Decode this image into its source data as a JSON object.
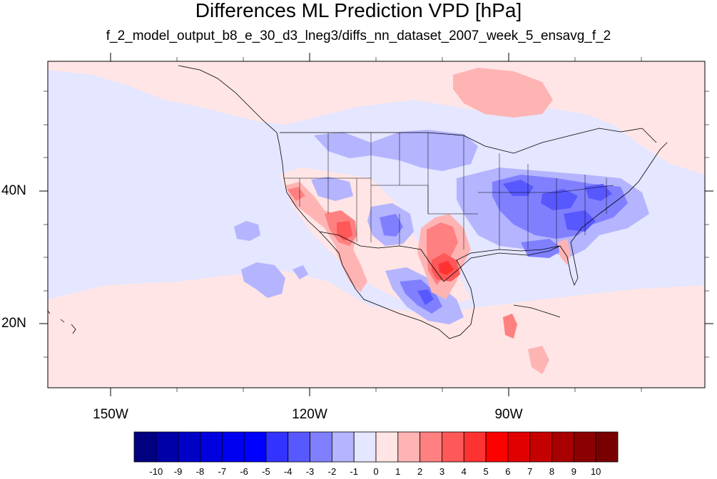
{
  "title": "Differences ML Prediction VPD [hPa]",
  "subtitle": "f_2_model_output_b8_e_30_d3_lneg3/diffs_nn_dataset_2007_week_5_ensavg_f_2",
  "map": {
    "projection": "cylindrical equidistant",
    "lon_range": [
      -160,
      -59
    ],
    "lat_range": [
      11,
      58
    ],
    "lon_ticks": [
      {
        "value": -150,
        "label": "150W"
      },
      {
        "value": -120,
        "label": "120W"
      },
      {
        "value": -90,
        "label": "90W"
      }
    ],
    "lat_ticks": [
      {
        "value": 40,
        "label": "40N"
      },
      {
        "value": 20,
        "label": "20N"
      }
    ],
    "background_color": "#E5E6FF",
    "coastline_color": "#000000",
    "boundaries": "US states"
  },
  "colorbar": {
    "labels": [
      "-10",
      "-9",
      "-8",
      "-7",
      "-6",
      "-5",
      "-4",
      "-3",
      "-2",
      "-1",
      "0",
      "1",
      "2",
      "3",
      "4",
      "5",
      "6",
      "7",
      "8",
      "9",
      "10"
    ],
    "colors": [
      "#000080",
      "#0000A8",
      "#0000C6",
      "#0000DE",
      "#0000F0",
      "#0000FF",
      "#3333FF",
      "#5858FF",
      "#8080FF",
      "#B4B4FF",
      "#E5E6FF",
      "#FFE5E5",
      "#FFB4B4",
      "#FF8080",
      "#FF5858",
      "#FF3232",
      "#FF0000",
      "#E00000",
      "#C40000",
      "#A80000",
      "#8B0000",
      "#780000"
    ]
  },
  "regions": [
    {
      "name": "hudson-bay-positive",
      "color": "#FFB4B4",
      "value": 1.5
    },
    {
      "name": "arizona-positive",
      "color": "#FF5858",
      "value": 3.5
    },
    {
      "name": "california-positive",
      "color": "#FF8080",
      "value": 2.5
    },
    {
      "name": "texas-positive",
      "color": "#FF3232",
      "value": 5
    },
    {
      "name": "new-mexico-positive",
      "color": "#FFB4B4",
      "value": 1.5
    },
    {
      "name": "east-us-negative",
      "color": "#8080FF",
      "value": -2.5
    },
    {
      "name": "ohio-valley-negative",
      "color": "#5858FF",
      "value": -3.5
    },
    {
      "name": "north-plains-negative",
      "color": "#B4B4FF",
      "value": -1.5
    },
    {
      "name": "mexico-negative",
      "color": "#8080FF",
      "value": -2.5
    },
    {
      "name": "pacific-negative",
      "color": "#B4B4FF",
      "value": -1.5
    },
    {
      "name": "cuba-positive",
      "color": "#FF8080",
      "value": 2.5
    }
  ]
}
